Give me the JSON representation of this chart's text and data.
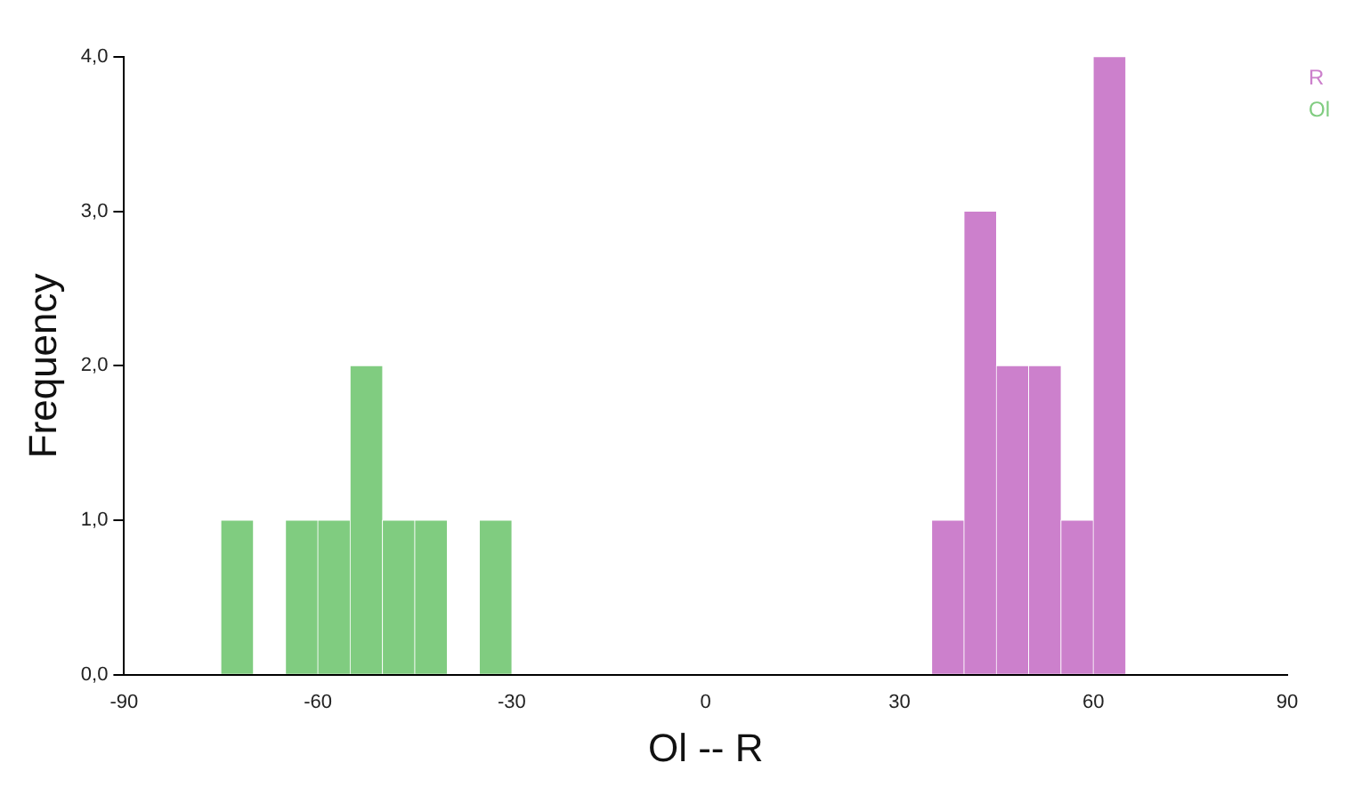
{
  "chart_data": {
    "type": "histogram",
    "xlabel": "Ol -- R",
    "ylabel": "Frequency",
    "xlim": [
      -90,
      90
    ],
    "xticks": [
      -90,
      -60,
      -30,
      0,
      30,
      60,
      90
    ],
    "ylim": [
      0,
      4
    ],
    "yticks": [
      {
        "value": 0,
        "label": "0,0"
      },
      {
        "value": 1,
        "label": "1,0"
      },
      {
        "value": 2,
        "label": "2,0"
      },
      {
        "value": 3,
        "label": "3,0"
      },
      {
        "value": 4,
        "label": "4,0"
      }
    ],
    "grid": false,
    "legend": "top right",
    "bins": [
      -75,
      -70,
      -65,
      -60,
      -55,
      -50,
      -45,
      -40,
      -35,
      -30,
      -25,
      -20,
      -15,
      -10,
      -5,
      0,
      5,
      10,
      15,
      20,
      25,
      30,
      35,
      40,
      45,
      50,
      55,
      60,
      65
    ],
    "series": [
      {
        "name": "R",
        "color": "#cc80cc",
        "values": [
          null,
          null,
          null,
          null,
          null,
          null,
          null,
          null,
          null,
          null,
          null,
          null,
          null,
          null,
          null,
          null,
          null,
          null,
          null,
          null,
          null,
          null,
          1,
          3,
          2,
          2,
          1,
          4
        ]
      },
      {
        "name": "Ol",
        "color": "#80cc80",
        "values": [
          1,
          null,
          1,
          1,
          2,
          1,
          1,
          null,
          1,
          null,
          null,
          null,
          null,
          null,
          null,
          null,
          null,
          null,
          null,
          null,
          null,
          null,
          null,
          null,
          null,
          null,
          null,
          null
        ]
      }
    ]
  }
}
